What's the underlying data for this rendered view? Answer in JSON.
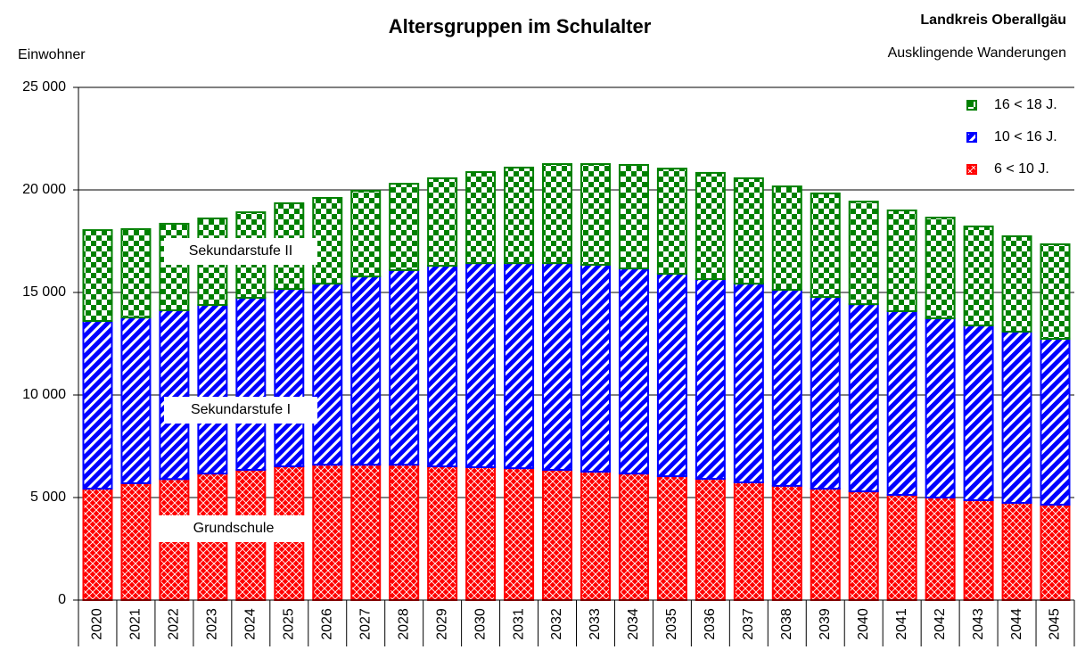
{
  "chart_data": {
    "type": "stacked_bar",
    "title": "Altersgruppen im Schulalter",
    "subtitle": "Landkreis Oberallgäu",
    "note": "Ausklingende Wanderungen",
    "y_label": "Einwohner",
    "annotations": [
      "Sekundarstufe II",
      "Sekundarstufe I",
      "Grundschule"
    ],
    "categories": [
      "2020",
      "2021",
      "2022",
      "2023",
      "2024",
      "2025",
      "2026",
      "2027",
      "2028",
      "2029",
      "2030",
      "2031",
      "2032",
      "2033",
      "2034",
      "2035",
      "2036",
      "2037",
      "2038",
      "2039",
      "2040",
      "2041",
      "2042",
      "2043",
      "2044",
      "2045"
    ],
    "series": [
      {
        "name": "6 < 10 J.",
        "color": "#ff0000",
        "pattern": "crosshatch",
        "values": [
          5430,
          5700,
          5900,
          6170,
          6350,
          6520,
          6600,
          6600,
          6600,
          6520,
          6480,
          6430,
          6350,
          6260,
          6170,
          6040,
          5910,
          5740,
          5570,
          5430,
          5300,
          5130,
          5000,
          4870,
          4740,
          4650
        ]
      },
      {
        "name": "10 < 16 J.",
        "color": "#0000ff",
        "pattern": "diagonal",
        "values": [
          8180,
          8080,
          8230,
          8220,
          8390,
          8650,
          8830,
          9180,
          9490,
          9780,
          9950,
          10000,
          10080,
          10090,
          10000,
          9870,
          9740,
          9690,
          9560,
          9350,
          9130,
          8960,
          8740,
          8520,
          8350,
          8090
        ]
      },
      {
        "name": "16 < 18 J.",
        "color": "#008000",
        "pattern": "checker",
        "values": [
          4430,
          4310,
          4220,
          4220,
          4170,
          4180,
          4180,
          4180,
          4210,
          4270,
          4440,
          4660,
          4830,
          4910,
          5050,
          5130,
          5180,
          5140,
          5040,
          5050,
          5000,
          4910,
          4910,
          4830,
          4650,
          4610
        ]
      }
    ],
    "ylim": [
      0,
      25000
    ],
    "yticks": [
      0,
      {
        "value": 5000,
        "label": "5 000"
      },
      {
        "value": 10000,
        "label": "10 000"
      },
      {
        "value": 15000,
        "label": "15 000"
      },
      {
        "value": 20000,
        "label": "20 000"
      },
      {
        "value": 25000,
        "label": "25 000"
      }
    ],
    "grid": true,
    "legend": "upper right"
  }
}
